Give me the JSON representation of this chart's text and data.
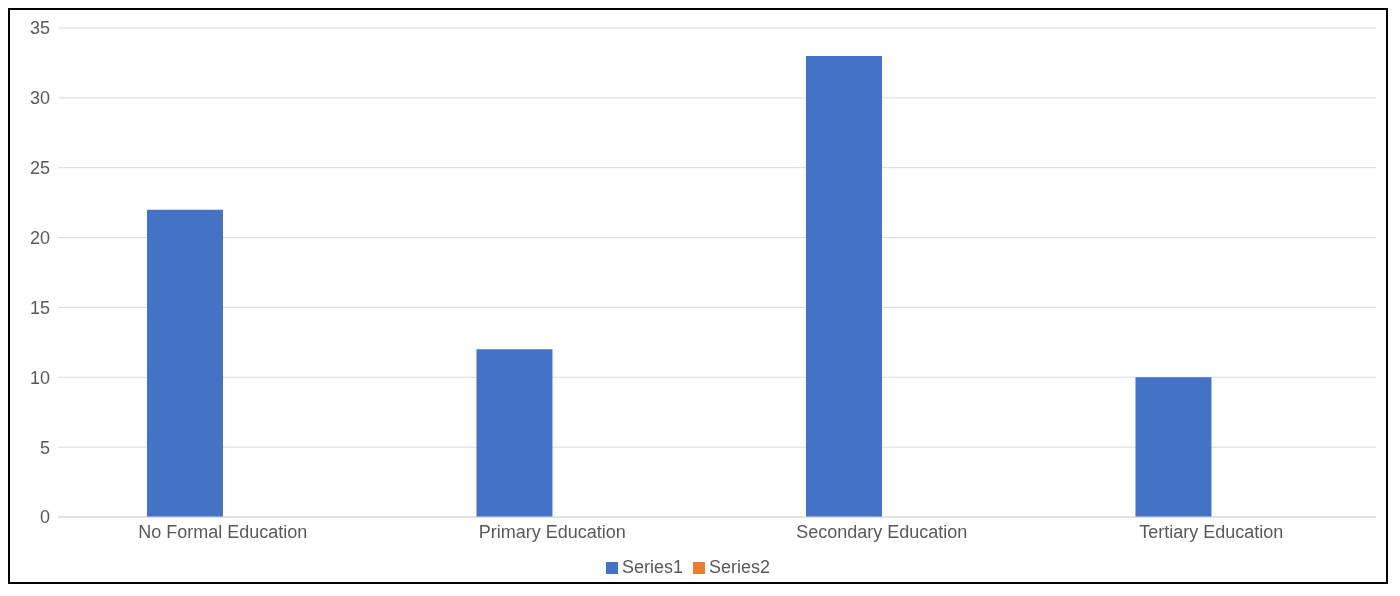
{
  "chart_data": {
    "type": "bar",
    "categories": [
      "No Formal Education",
      "Primary Education",
      "Secondary Education",
      "Tertiary Education"
    ],
    "series": [
      {
        "name": "Series1",
        "color": "#4472c4",
        "values": [
          22,
          12,
          33,
          10
        ]
      },
      {
        "name": "Series2",
        "color": "#ed7d31",
        "values": [
          null,
          null,
          null,
          null
        ]
      }
    ],
    "ylim": [
      0,
      35
    ],
    "yticks": [
      0,
      5,
      10,
      15,
      20,
      25,
      30,
      35
    ],
    "grid": "y",
    "legend": "bottom"
  }
}
